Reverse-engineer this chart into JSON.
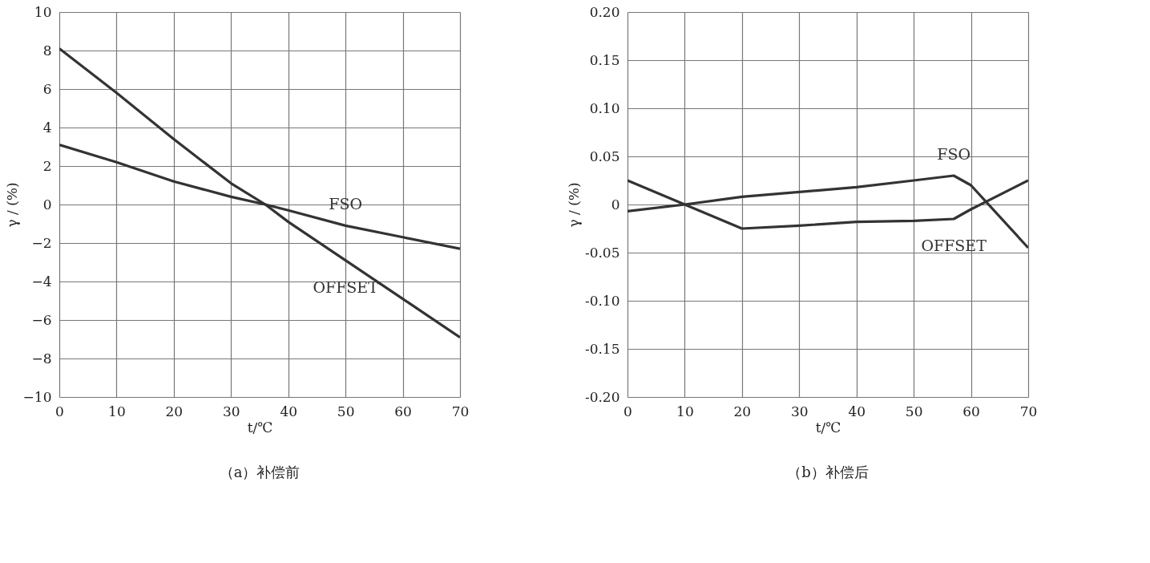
{
  "chart_data": [
    {
      "type": "line",
      "title": "（a）补偿前",
      "xlabel": "t/℃",
      "ylabel": "γ / (%)",
      "xlim": [
        0,
        70
      ],
      "xticks": [
        0,
        10,
        20,
        30,
        40,
        50,
        60,
        70
      ],
      "ylim": [
        -10,
        10
      ],
      "yticks": [
        -10,
        -8,
        -6,
        -4,
        -2,
        0,
        2,
        4,
        6,
        8,
        10
      ],
      "grid": true,
      "series": [
        {
          "name": "OFFSET",
          "color": "#333333",
          "x": [
            0,
            10,
            20,
            30,
            36,
            40,
            50,
            60,
            70
          ],
          "values": [
            8.1,
            5.8,
            3.4,
            1.1,
            0,
            -0.9,
            -2.9,
            -4.9,
            -6.9
          ]
        },
        {
          "name": "FSO",
          "color": "#333333",
          "x": [
            0,
            10,
            20,
            30,
            36,
            40,
            50,
            60,
            70
          ],
          "values": [
            3.1,
            2.2,
            1.2,
            0.4,
            0,
            -0.3,
            -1.1,
            -1.7,
            -2.3
          ]
        }
      ]
    },
    {
      "type": "line",
      "title": "（b）补偿后",
      "xlabel": "t/℃",
      "ylabel": "γ / (%)",
      "xlim": [
        0,
        70
      ],
      "xticks": [
        0,
        10,
        20,
        30,
        40,
        50,
        60,
        70
      ],
      "ylim": [
        -0.2,
        0.2
      ],
      "yticks": [
        {
          "value": -0.2,
          "label": "-0.20"
        },
        {
          "value": -0.15,
          "label": "-0.15"
        },
        {
          "value": -0.1,
          "label": "-0.10"
        },
        {
          "value": -0.05,
          "label": "-0.05"
        },
        0,
        {
          "value": 0.05,
          "label": "0.05"
        },
        {
          "value": 0.1,
          "label": "0.10"
        },
        {
          "value": 0.15,
          "label": "0.15"
        },
        {
          "value": 0.2,
          "label": "0.20"
        }
      ],
      "grid": true,
      "series": [
        {
          "name": "OFFSET",
          "color": "#333333",
          "x": [
            0,
            10,
            20,
            30,
            40,
            50,
            57,
            60,
            70
          ],
          "values": [
            0.025,
            0.0,
            -0.025,
            -0.022,
            -0.018,
            -0.017,
            -0.015,
            -0.005,
            0.025
          ]
        },
        {
          "name": "FSO",
          "color": "#333333",
          "x": [
            0,
            10,
            20,
            30,
            40,
            50,
            57,
            60,
            70
          ],
          "values": [
            -0.007,
            0.0,
            0.008,
            0.013,
            0.018,
            0.025,
            0.03,
            0.02,
            -0.045
          ]
        }
      ]
    }
  ]
}
